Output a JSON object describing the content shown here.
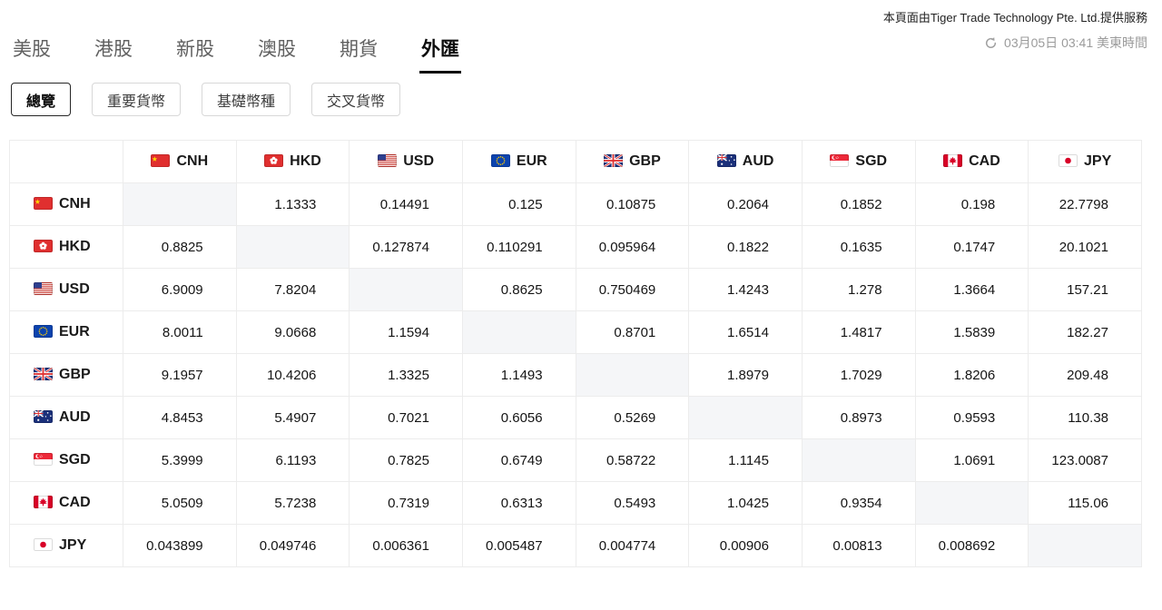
{
  "meta": {
    "provider_notice": "本頁面由Tiger Trade Technology Pte. Ltd.提供服務",
    "timestamp": "03月05日 03:41 美東時間"
  },
  "nav": {
    "tabs": [
      {
        "id": "us-stocks",
        "label": "美股",
        "active": false
      },
      {
        "id": "hk-stocks",
        "label": "港股",
        "active": false
      },
      {
        "id": "ipo",
        "label": "新股",
        "active": false
      },
      {
        "id": "au-stocks",
        "label": "澳股",
        "active": false
      },
      {
        "id": "futures",
        "label": "期貨",
        "active": false
      },
      {
        "id": "forex",
        "label": "外匯",
        "active": true
      }
    ]
  },
  "filters": [
    {
      "id": "overview",
      "label": "總覽",
      "active": true
    },
    {
      "id": "major-currencies",
      "label": "重要貨幣",
      "active": false
    },
    {
      "id": "base-currencies",
      "label": "基礎幣種",
      "active": false
    },
    {
      "id": "cross-currencies",
      "label": "交叉貨幣",
      "active": false
    }
  ],
  "exchange_table": {
    "columns": [
      "CNH",
      "HKD",
      "USD",
      "EUR",
      "GBP",
      "AUD",
      "SGD",
      "CAD",
      "JPY"
    ],
    "rows": [
      {
        "code": "CNH",
        "values": [
          "",
          "1.1333",
          "0.14491",
          "0.125",
          "0.10875",
          "0.2064",
          "0.1852",
          "0.198",
          "22.7798"
        ]
      },
      {
        "code": "HKD",
        "values": [
          "0.8825",
          "",
          "0.127874",
          "0.110291",
          "0.095964",
          "0.1822",
          "0.1635",
          "0.1747",
          "20.1021"
        ]
      },
      {
        "code": "USD",
        "values": [
          "6.9009",
          "7.8204",
          "",
          "0.8625",
          "0.750469",
          "1.4243",
          "1.278",
          "1.3664",
          "157.21"
        ]
      },
      {
        "code": "EUR",
        "values": [
          "8.0011",
          "9.0668",
          "1.1594",
          "",
          "0.8701",
          "1.6514",
          "1.4817",
          "1.5839",
          "182.27"
        ]
      },
      {
        "code": "GBP",
        "values": [
          "9.1957",
          "10.4206",
          "1.3325",
          "1.1493",
          "",
          "1.8979",
          "1.7029",
          "1.8206",
          "209.48"
        ]
      },
      {
        "code": "AUD",
        "values": [
          "4.8453",
          "5.4907",
          "0.7021",
          "0.6056",
          "0.5269",
          "",
          "0.8973",
          "0.9593",
          "110.38"
        ]
      },
      {
        "code": "SGD",
        "values": [
          "5.3999",
          "6.1193",
          "0.7825",
          "0.6749",
          "0.58722",
          "1.1145",
          "",
          "1.0691",
          "123.0087"
        ]
      },
      {
        "code": "CAD",
        "values": [
          "5.0509",
          "5.7238",
          "0.7319",
          "0.6313",
          "0.5493",
          "1.0425",
          "0.9354",
          "",
          "115.06"
        ]
      },
      {
        "code": "JPY",
        "values": [
          "0.043899",
          "0.049746",
          "0.006361",
          "0.005487",
          "0.004774",
          "0.00906",
          "0.00813",
          "0.008692",
          ""
        ]
      }
    ]
  },
  "colors": {
    "accent": "#0d0d0d",
    "flag_red": "#e02f2f",
    "muted_text": "#9b9b9b",
    "diagonal_bg": "#f5f6f8"
  }
}
